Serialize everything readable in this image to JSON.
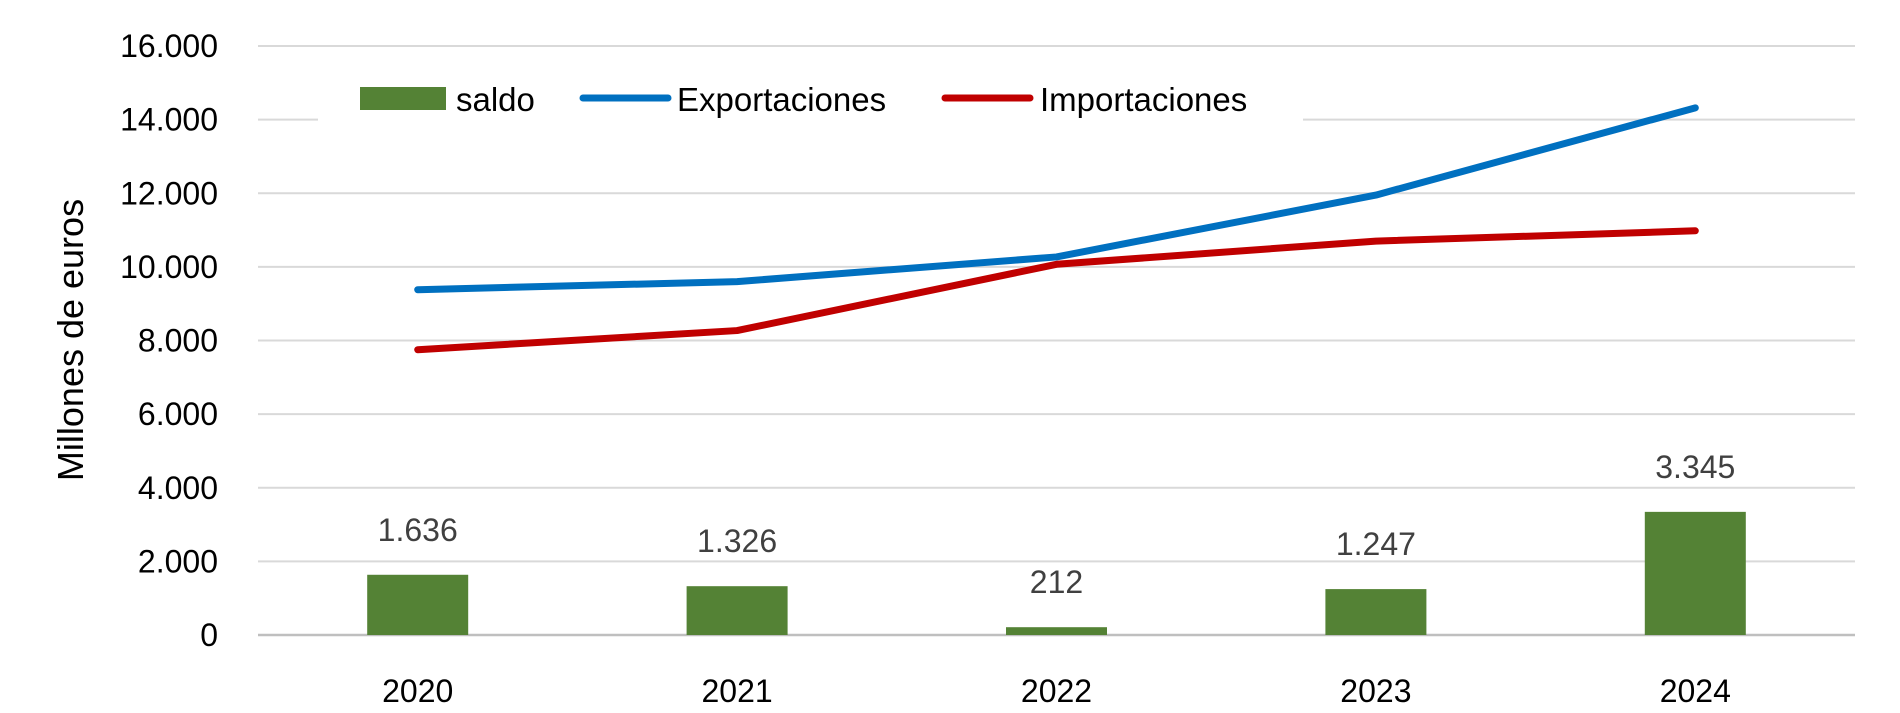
{
  "chart_data": {
    "type": "bar",
    "categories": [
      "2020",
      "2021",
      "2022",
      "2023",
      "2024"
    ],
    "ylabel": "Millones de euros",
    "xlabel": "",
    "title": "",
    "ylim": [
      0,
      16000
    ],
    "yticks": [
      0,
      2000,
      4000,
      6000,
      8000,
      10000,
      12000,
      14000,
      16000
    ],
    "ytick_labels": [
      "0",
      "2.000",
      "4.000",
      "6.000",
      "8.000",
      "10.000",
      "12.000",
      "14.000",
      "16.000"
    ],
    "grid": true,
    "legend_position": "top",
    "series": [
      {
        "name": "saldo",
        "type": "bar",
        "color": "#548235",
        "values": [
          1636,
          1326,
          212,
          1247,
          3345
        ],
        "labels": [
          "1.636",
          "1.326",
          "212",
          "1.247",
          "3.345"
        ]
      },
      {
        "name": "Exportaciones",
        "type": "line",
        "color": "#0070C0",
        "values": [
          9380,
          9600,
          10270,
          11950,
          14320
        ]
      },
      {
        "name": "Importaciones",
        "type": "line",
        "color": "#C00000",
        "values": [
          7750,
          8270,
          10070,
          10700,
          10980
        ]
      }
    ]
  }
}
